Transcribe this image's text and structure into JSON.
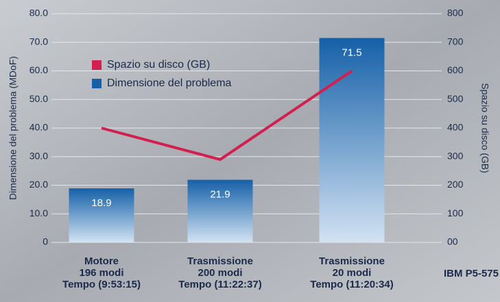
{
  "chart_data": {
    "type": "bar",
    "categories": [
      [
        "Motore",
        "196 modi",
        "Tempo (9:53:15)"
      ],
      [
        "Trasmissione",
        "200 modi",
        "Tempo (11:22:37)"
      ],
      [
        "Trasmissione",
        "20 modi",
        "Tempo (11:20:34)"
      ]
    ],
    "series": [
      {
        "name": "Dimensione del problema",
        "type": "bar",
        "color": "#1560a8",
        "values": [
          18.9,
          21.9,
          71.5
        ]
      },
      {
        "name": "Spazio su disco (GB)",
        "type": "line",
        "axis": "y2",
        "color": "#d21f4f",
        "values": [
          400,
          290,
          600
        ]
      }
    ],
    "ylabel": "Dimensione del problema (MDoF)",
    "y2label": "Spazio su disco (GB)",
    "ylim": [
      0,
      80
    ],
    "yticks": [
      0,
      {
        "value": 10,
        "label": "10.0"
      },
      {
        "value": 20,
        "label": "20.0"
      },
      {
        "value": 30,
        "label": "30.0"
      },
      {
        "value": 40,
        "label": "40.0"
      },
      {
        "value": 50,
        "label": "50.0"
      },
      {
        "value": 60,
        "label": "60.0"
      },
      {
        "value": 70,
        "label": "70.0"
      },
      {
        "value": 80,
        "label": "80.0"
      }
    ],
    "y2lim": [
      0,
      800
    ],
    "y2ticks": [
      {
        "value": 0,
        "label": "00"
      },
      100,
      200,
      300,
      400,
      500,
      600,
      700,
      800
    ],
    "grid": true,
    "legend": "upper left",
    "annotation": "IBM P5-575"
  }
}
